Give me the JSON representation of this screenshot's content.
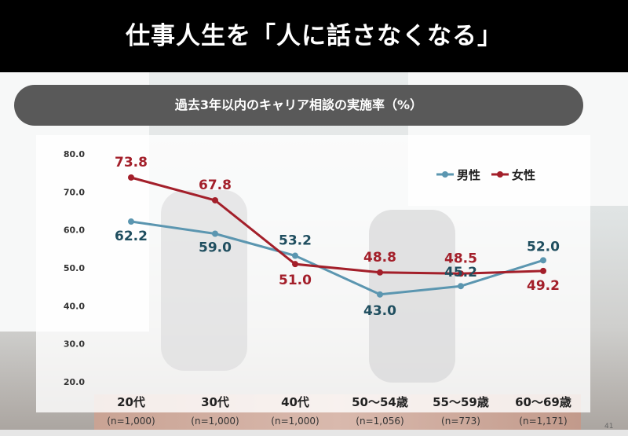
{
  "header": {
    "title": "仕事人生を「人に話さなくなる」"
  },
  "page_number": "41",
  "chart_data": {
    "type": "line",
    "title": "過去3年以内のキャリア相談の実施率（%）",
    "categories": [
      "20代",
      "30代",
      "40代",
      "50〜54歳",
      "55〜59歳",
      "60〜69歳"
    ],
    "sample_sizes": [
      "(n=1,000)",
      "(n=1,000)",
      "(n=1,000)",
      "(n=1,056)",
      "(n=773)",
      "(n=1,171)"
    ],
    "series": [
      {
        "name": "男性",
        "values": [
          62.2,
          59.0,
          53.2,
          43.0,
          45.2,
          52.0
        ],
        "color": "#5b96b0",
        "label_color": "#1f4e5f"
      },
      {
        "name": "女性",
        "values": [
          73.8,
          67.8,
          51.0,
          48.8,
          48.5,
          49.2
        ],
        "color": "#a31f2a",
        "label_color": "#a31f2a"
      }
    ],
    "yticks": [
      "80.0",
      "70.0",
      "60.0",
      "50.0",
      "40.0",
      "30.0",
      "20.0"
    ],
    "ylim": [
      20,
      80
    ],
    "legend_position": "top-right",
    "grid": false
  }
}
